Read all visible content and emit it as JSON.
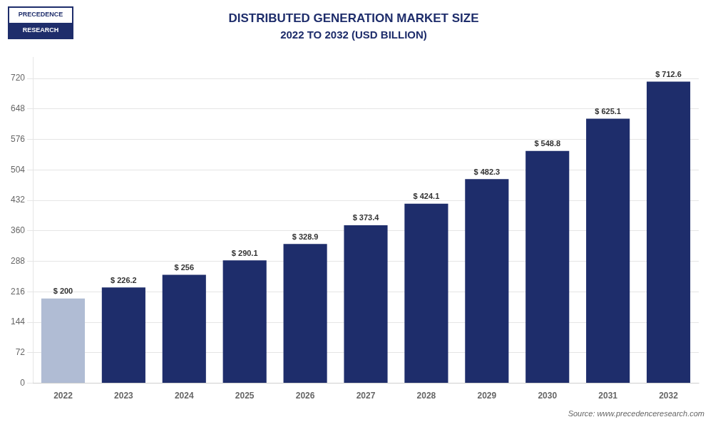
{
  "chart_data": {
    "type": "bar",
    "title": "DISTRIBUTED GENERATION MARKET SIZE",
    "subtitle": "2022 TO 2032 (USD BILLION)",
    "categories": [
      "2022",
      "2023",
      "2024",
      "2025",
      "2026",
      "2027",
      "2028",
      "2029",
      "2030",
      "2031",
      "2032"
    ],
    "values": [
      200,
      226.2,
      256,
      290.1,
      328.9,
      373.4,
      424.1,
      482.3,
      548.8,
      625.1,
      712.6
    ],
    "value_labels": [
      "$ 200",
      "$ 226.2",
      "$ 256",
      "$ 290.1",
      "$ 328.9",
      "$ 373.4",
      "$ 424.1",
      "$ 482.3",
      "$ 548.8",
      "$ 625.1",
      "$ 712.6"
    ],
    "data_labels": true,
    "colors": [
      "#b0bcd4",
      "#1e2d6b",
      "#1e2d6b",
      "#1e2d6b",
      "#1e2d6b",
      "#1e2d6b",
      "#1e2d6b",
      "#1e2d6b",
      "#1e2d6b",
      "#1e2d6b",
      "#1e2d6b"
    ],
    "ylim": [
      0,
      770
    ],
    "yticks": [
      0,
      72,
      144,
      216,
      288,
      360,
      432,
      504,
      576,
      648,
      720
    ],
    "grid": true,
    "annotations": [
      "PRECEDENCE",
      "RESEARCH",
      "Source: www.precedenceresearch.com"
    ]
  }
}
